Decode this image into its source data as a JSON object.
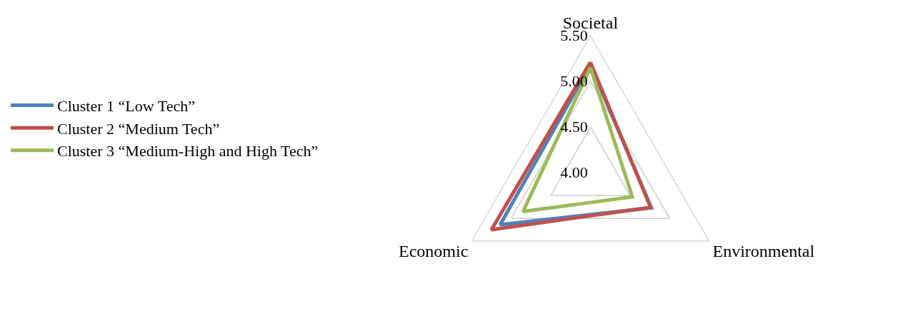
{
  "chart_data": {
    "type": "radar",
    "categories": [
      "Societal",
      "Environmental",
      "Economic"
    ],
    "series": [
      {
        "name": "Cluster 1 “Low Tech”",
        "color": "#4f81bd",
        "values": [
          5.18,
          4.77,
          5.14
        ]
      },
      {
        "name": "Cluster 2 “Medium Tech”",
        "color": "#c0504d",
        "values": [
          5.21,
          4.76,
          5.25
        ]
      },
      {
        "name": "Cluster 3 “Medium-High and High Tech”",
        "color": "#9bbb59",
        "values": [
          5.15,
          4.53,
          4.85
        ]
      }
    ],
    "ylim": [
      4.0,
      5.5
    ],
    "yticks": [
      {
        "value": 4.0,
        "label": "4.00"
      },
      {
        "value": 4.5,
        "label": "4.50"
      },
      {
        "value": 5.0,
        "label": "5.00"
      },
      {
        "value": 5.5,
        "label": "5.50"
      }
    ],
    "legend": "left",
    "marker": "none",
    "line_style": "solid",
    "grid": true
  }
}
